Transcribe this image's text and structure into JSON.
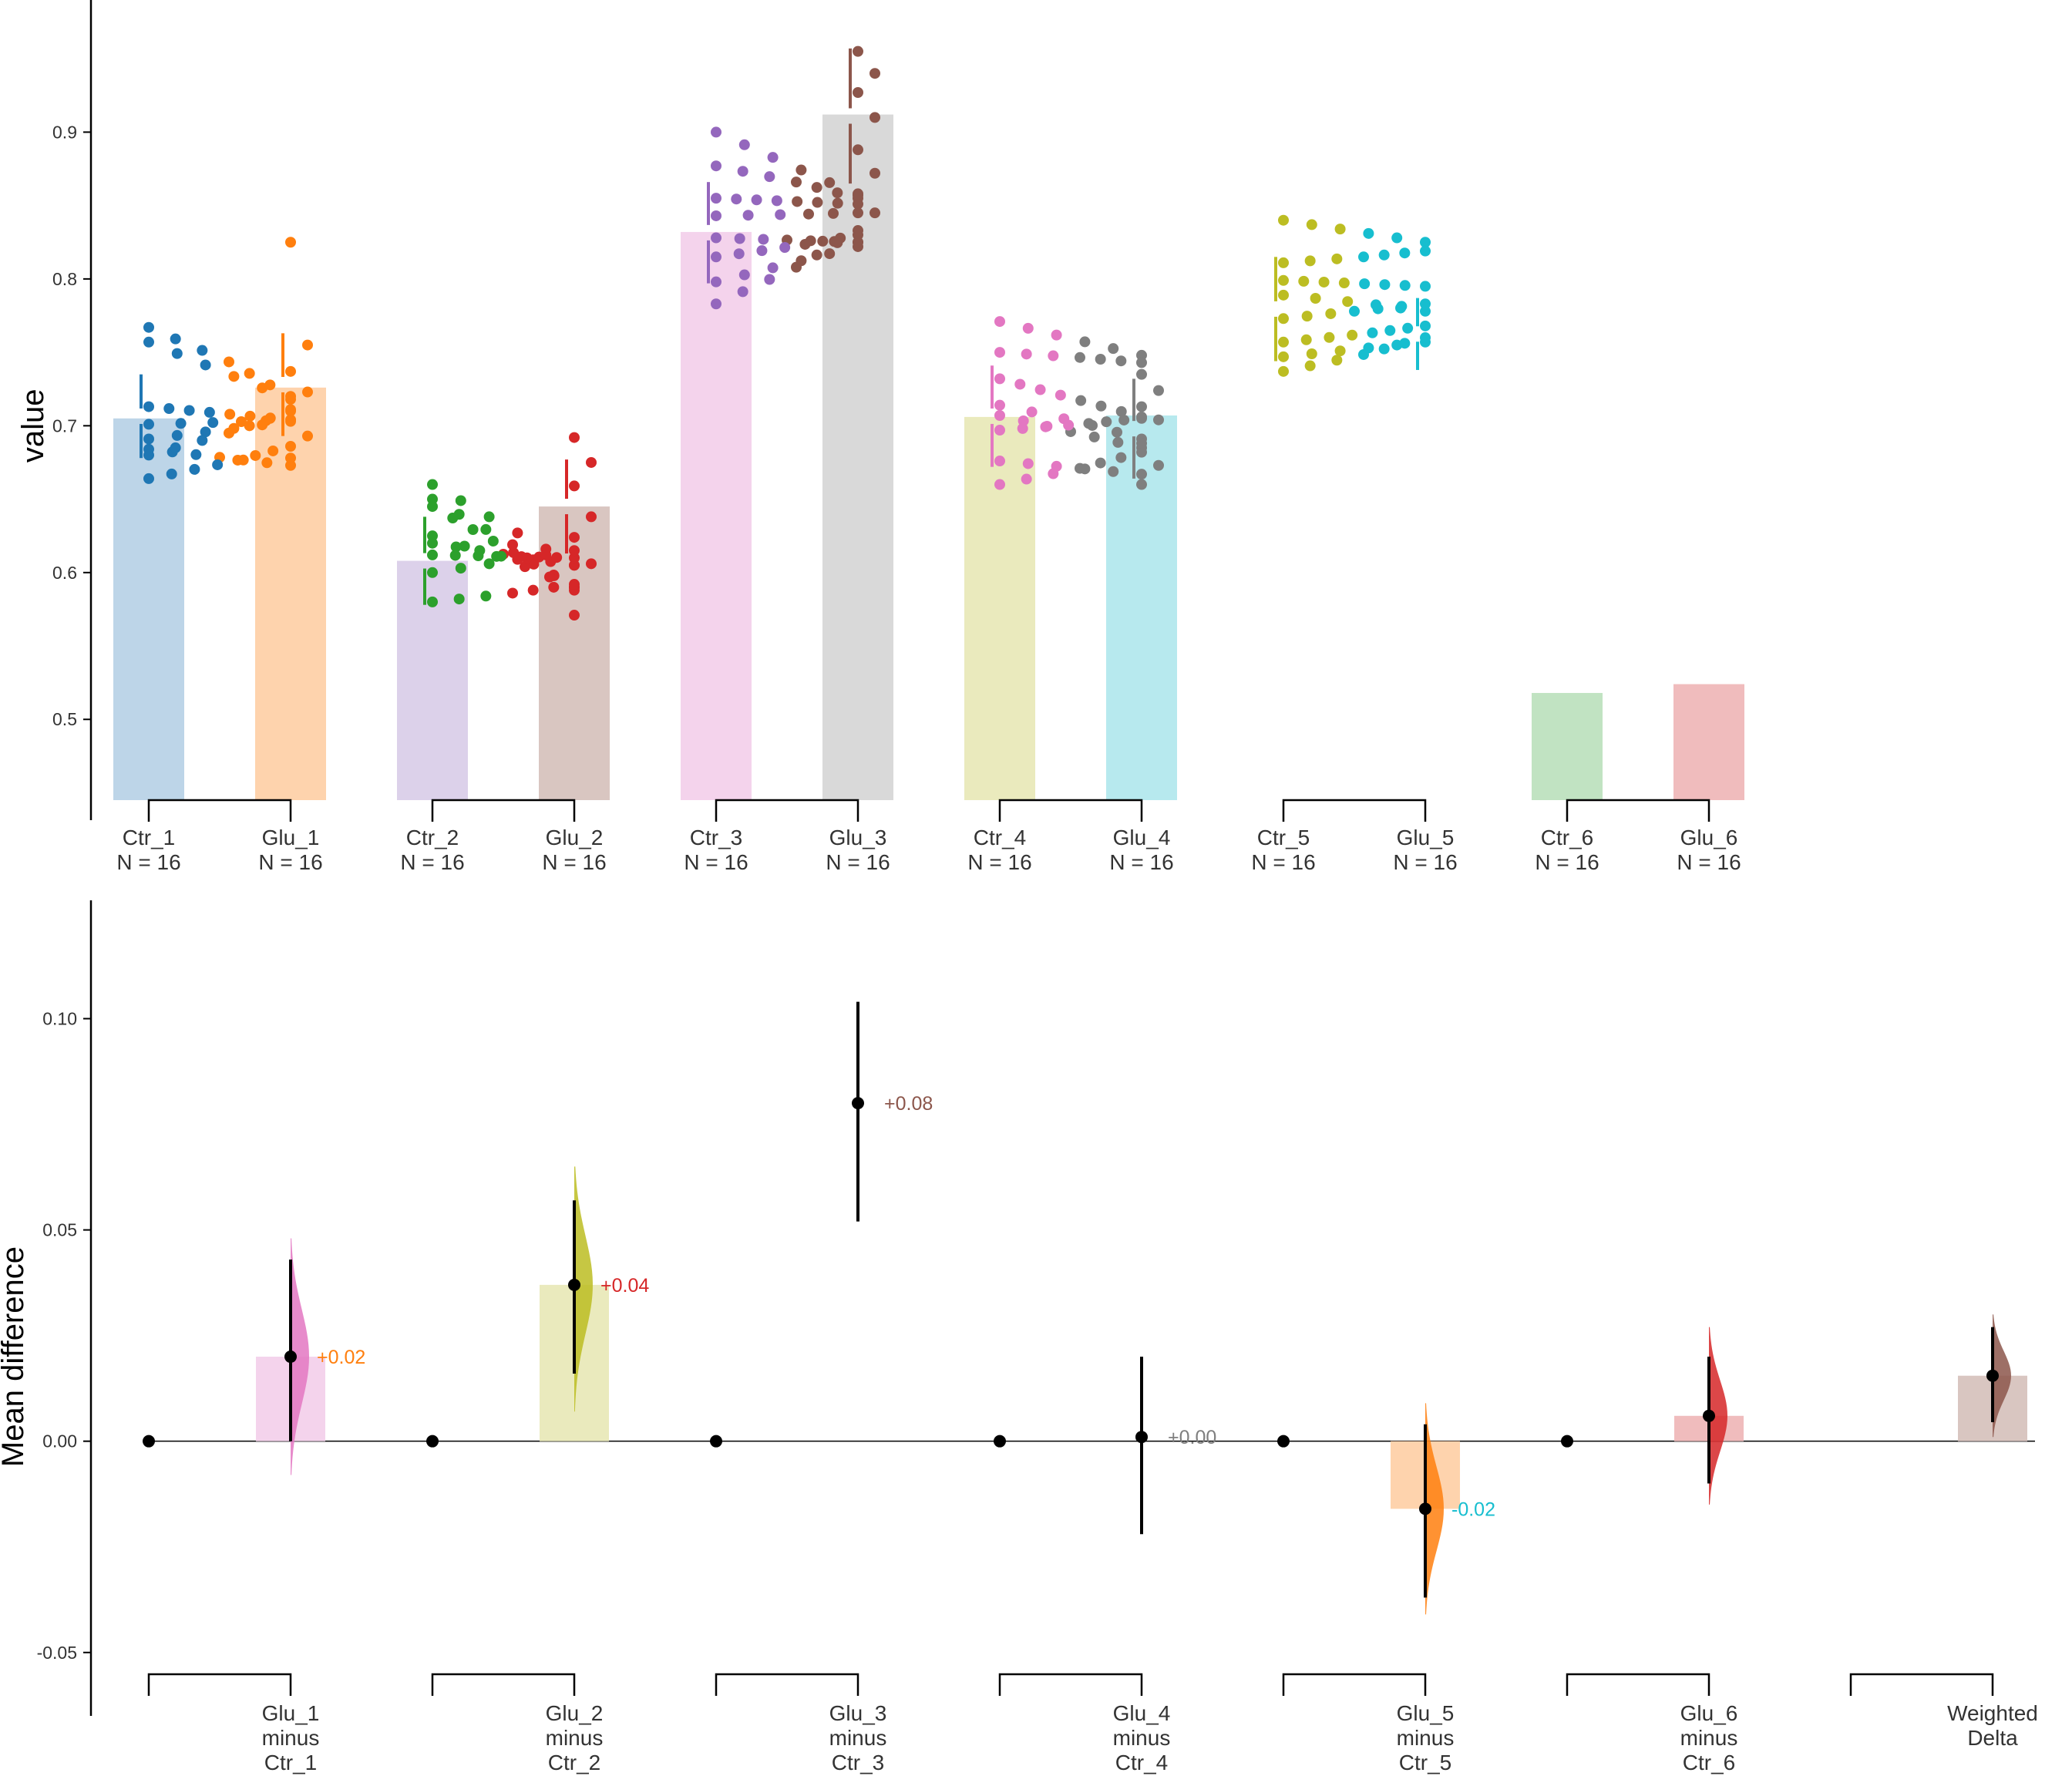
{
  "chart_data": [
    {
      "type": "bar",
      "panel": "raw",
      "ylabel": "value",
      "ylim": [
        0.445,
        0.99
      ],
      "yticks": [
        "0.5",
        "0.6",
        "0.7",
        "0.8",
        "0.9"
      ],
      "categories": [
        "Ctr_1",
        "Glu_1",
        "Ctr_2",
        "Glu_2",
        "Ctr_3",
        "Glu_3",
        "Ctr_4",
        "Glu_4",
        "Ctr_5",
        "Glu_5",
        "Ctr_6",
        "Glu_6"
      ],
      "n_labels": [
        "N = 16",
        "N = 16",
        "N = 16",
        "N = 16",
        "N = 16",
        "N = 16",
        "N = 16",
        "N = 16",
        "N = 16",
        "N = 16",
        "N = 16",
        "N = 16"
      ],
      "bar_values": [
        0.705,
        0.726,
        0.608,
        0.645,
        0.832,
        0.912,
        0.706,
        0.707,
        null,
        null,
        0.518,
        0.524
      ],
      "bar_colors": [
        "#bdd5e8",
        "#fed3ad",
        "#dcd1ea",
        "#d9c6c1",
        "#f4d3ec",
        "#d9d9d9",
        "#eaeabd",
        "#b7e9ee",
        "",
        "",
        "#c1e3c2",
        "#f0bcbd"
      ],
      "series_colors": [
        "#1f77b4",
        "#ff7f0e",
        "#2ca02c",
        "#d62728",
        "#9467bd",
        "#8c564b",
        "#e377c2",
        "#7f7f7f",
        "#bcbd22",
        "#17becf",
        "#2ca02c",
        "#d62728"
      ],
      "pair_brackets": [
        [
          0,
          1
        ],
        [
          2,
          3
        ],
        [
          4,
          5
        ],
        [
          6,
          7
        ],
        [
          8,
          9
        ],
        [
          10,
          11
        ]
      ],
      "paired_points": [
        [
          [
            0.757,
            0.718
          ],
          [
            0.767,
            0.72
          ],
          [
            0.713,
            0.704
          ],
          [
            0.701,
            0.704
          ],
          [
            0.684,
            0.673
          ],
          [
            0.664,
            0.686
          ],
          [
            0.691,
            0.703
          ],
          [
            0.68,
            0.71
          ]
        ],
        [
          [
            0.66,
            0.605
          ],
          [
            0.65,
            0.588
          ],
          [
            0.645,
            0.59
          ],
          [
            0.625,
            0.59
          ],
          [
            0.62,
            0.605
          ],
          [
            0.612,
            0.61
          ],
          [
            0.6,
            0.615
          ],
          [
            0.58,
            0.592
          ]
        ],
        [
          [
            0.9,
            0.857
          ],
          [
            0.877,
            0.855
          ],
          [
            0.855,
            0.851
          ],
          [
            0.843,
            0.845
          ],
          [
            0.828,
            0.825
          ],
          [
            0.815,
            0.83
          ],
          [
            0.798,
            0.822
          ],
          [
            0.783,
            0.833
          ]
        ],
        [
          [
            0.771,
            0.748
          ],
          [
            0.75,
            0.743
          ],
          [
            0.732,
            0.706
          ],
          [
            0.714,
            0.691
          ],
          [
            0.707,
            0.685
          ],
          [
            0.697,
            0.705
          ],
          [
            0.676,
            0.667
          ],
          [
            0.66,
            0.682
          ]
        ],
        [
          [
            0.84,
            0.825
          ],
          [
            0.811,
            0.819
          ],
          [
            0.799,
            0.795
          ],
          [
            0.789,
            0.778
          ],
          [
            0.773,
            0.783
          ],
          [
            0.757,
            0.768
          ],
          [
            0.747,
            0.757
          ],
          [
            0.737,
            0.76
          ]
        ]
      ],
      "single_points": [
        {
          "group": 1,
          "y": [
            0.825,
            0.755,
            0.737,
            0.723,
            0.711,
            0.693,
            0.678
          ]
        },
        {
          "group": 3,
          "y": [
            0.692,
            0.675,
            0.659,
            0.638,
            0.624,
            0.606,
            0.571
          ]
        },
        {
          "group": 5,
          "y": [
            0.955,
            0.94,
            0.927,
            0.91,
            0.888,
            0.872,
            0.858,
            0.845,
            0.825
          ]
        },
        {
          "group": 7,
          "y": [
            0.735,
            0.724,
            0.713,
            0.704,
            0.688,
            0.673,
            0.66
          ]
        }
      ],
      "errorbars": [
        [
          0.735,
          0.678
        ],
        [
          0.763,
          0.693
        ],
        [
          0.638,
          0.578
        ],
        [
          0.677,
          0.613
        ],
        [
          0.866,
          0.797
        ],
        [
          0.957,
          0.865
        ],
        [
          0.741,
          0.672
        ],
        [
          0.732,
          0.664
        ],
        [
          0.815,
          0.744
        ],
        [
          0.787,
          0.738
        ]
      ]
    },
    {
      "type": "estimation",
      "panel": "delta",
      "ylabel": "Mean difference",
      "ylim": [
        -0.065,
        0.128
      ],
      "yticks": [
        "-0.05",
        "0.00",
        "0.05",
        "0.10"
      ],
      "zero_points": [
        0,
        2,
        4,
        6,
        8,
        10
      ],
      "contrasts": [
        {
          "label": [
            "Glu_1",
            "minus",
            "Ctr_1"
          ],
          "mean": 0.02,
          "ci": [
            0.0,
            0.043
          ],
          "dist": [
            -0.008,
            0.048
          ],
          "text": "+0.02",
          "bar_color": "#f4d3ec",
          "dist_color": "#e377c2",
          "text_color": "#ff7f0e",
          "pos": 1
        },
        {
          "label": [
            "Glu_2",
            "minus",
            "Ctr_2"
          ],
          "mean": 0.037,
          "ci": [
            0.016,
            0.057
          ],
          "dist": [
            0.007,
            0.065
          ],
          "text": "+0.04",
          "bar_color": "#eaeabd",
          "dist_color": "#bcbd22",
          "text_color": "#d62728",
          "pos": 3
        },
        {
          "label": [
            "Glu_3",
            "minus",
            "Ctr_3"
          ],
          "mean": 0.08,
          "ci": [
            0.052,
            0.104
          ],
          "dist": null,
          "text": "+0.08",
          "bar_color": "",
          "dist_color": "",
          "text_color": "#8c564b",
          "pos": 5
        },
        {
          "label": [
            "Glu_4",
            "minus",
            "Ctr_4"
          ],
          "mean": 0.001,
          "ci": [
            -0.022,
            0.02
          ],
          "dist": null,
          "text": "+0.00",
          "bar_color": "",
          "dist_color": "",
          "text_color": "#7f7f7f",
          "pos": 7
        },
        {
          "label": [
            "Glu_5",
            "minus",
            "Ctr_5"
          ],
          "mean": -0.016,
          "ci": [
            -0.037,
            0.004
          ],
          "dist": [
            -0.041,
            0.009
          ],
          "text": "-0.02",
          "bar_color": "#fed3ad",
          "dist_color": "#ff7f0e",
          "text_color": "#17becf",
          "pos": 9
        },
        {
          "label": [
            "Glu_6",
            "minus",
            "Ctr_6"
          ],
          "mean": 0.006,
          "ci": [
            -0.01,
            0.02
          ],
          "dist": [
            -0.015,
            0.027
          ],
          "text": "",
          "bar_color": "#f0bcbd",
          "dist_color": "#d62728",
          "text_color": "",
          "pos": 11
        },
        {
          "label": [
            "Weighted",
            "Delta"
          ],
          "mean": 0.0155,
          "ci": [
            0.0045,
            0.027
          ],
          "dist": [
            0.001,
            0.03
          ],
          "text": "",
          "bar_color": "#d9c6c1",
          "dist_color": "#8c564b",
          "text_color": "",
          "pos": 13
        }
      ],
      "weighted_bracket_start": 12
    }
  ]
}
